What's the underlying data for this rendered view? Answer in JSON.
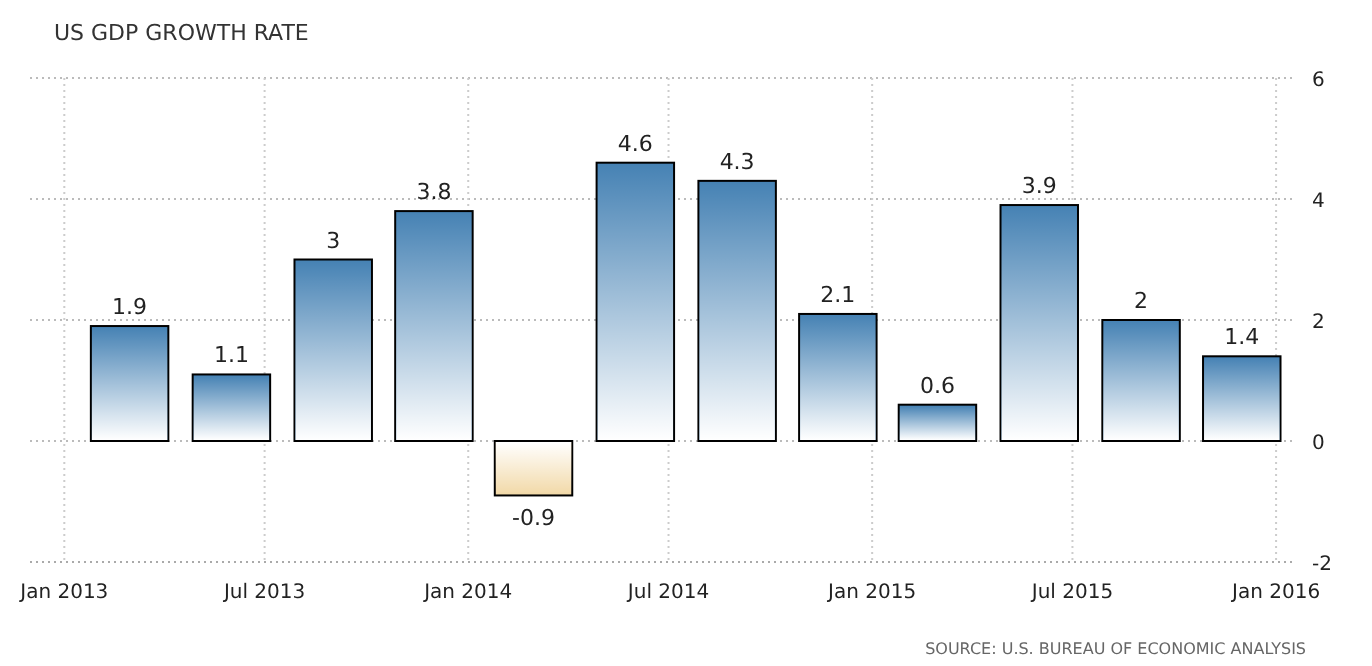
{
  "chart_data": {
    "type": "bar",
    "title": "US GDP GROWTH RATE",
    "x": [
      "2013-03-01",
      "2013-06-01",
      "2013-09-01",
      "2013-12-01",
      "2014-03-01",
      "2014-06-01",
      "2014-09-01",
      "2014-12-01",
      "2015-03-01",
      "2015-06-01",
      "2015-09-01",
      "2015-12-01"
    ],
    "values": [
      1.9,
      1.1,
      3,
      3.8,
      -0.9,
      4.6,
      4.3,
      2.1,
      0.6,
      3.9,
      2,
      1.4
    ],
    "colors": [
      "#4682b4",
      "#4682b4",
      "#4682b4",
      "#4682b4",
      "#f2d9a8",
      "#4682b4",
      "#4682b4",
      "#4682b4",
      "#4682b4",
      "#4682b4",
      "#4682b4",
      "#4682b4"
    ],
    "data_labels": true,
    "xlim": [
      "2012-12-01",
      "2016-01-19"
    ],
    "xticks": [
      {
        "value": "2013-01-01",
        "label": "Jan 2013"
      },
      {
        "value": "2013-07-01",
        "label": "Jul 2013"
      },
      {
        "value": "2014-01-01",
        "label": "Jan 2014"
      },
      {
        "value": "2014-07-01",
        "label": "Jul 2014"
      },
      {
        "value": "2015-01-01",
        "label": "Jan 2015"
      },
      {
        "value": "2015-07-01",
        "label": "Jul 2015"
      },
      {
        "value": "2016-01-01",
        "label": "Jan 2016"
      }
    ],
    "ylim": [
      -2,
      6
    ],
    "yticks": [
      -2,
      0,
      2,
      4,
      6
    ],
    "grid": true,
    "annotations": [
      "SOURCE: U.S. BUREAU OF ECONOMIC ANALYSIS"
    ]
  }
}
